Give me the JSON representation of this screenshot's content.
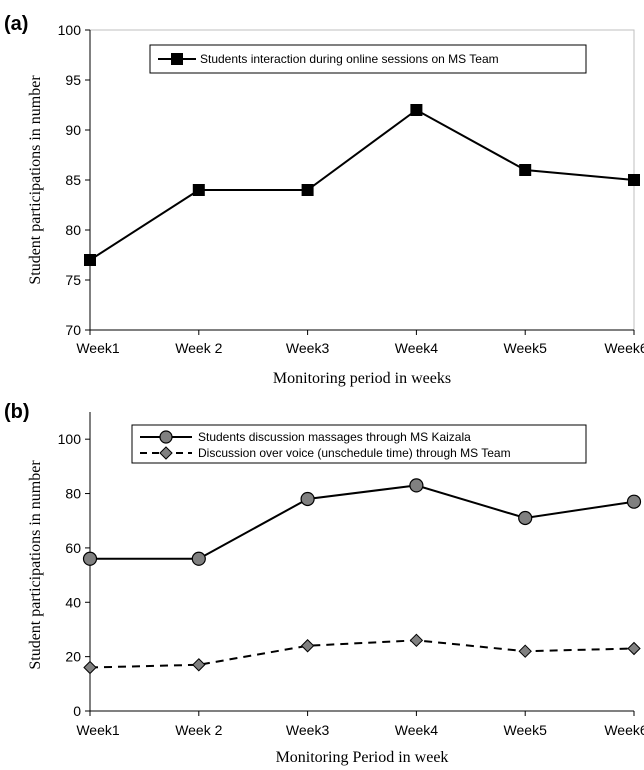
{
  "chart_data": [
    {
      "panel_label": "(a)",
      "type": "line",
      "categories": [
        "Week1",
        "Week 2",
        "Week3",
        "Week4",
        "Week5",
        "Week6"
      ],
      "series": [
        {
          "name": "Students interaction during online sessions on MS Team",
          "values": [
            77,
            84,
            84,
            92,
            86,
            85
          ],
          "color": "#000000",
          "marker": "square",
          "dash": "solid"
        }
      ],
      "xlabel": "Monitoring period in weeks",
      "ylabel": "Student participations in number",
      "ylim": [
        70,
        100
      ],
      "yticks": [
        "70",
        "75",
        "80",
        "85",
        "90",
        "95",
        "100"
      ],
      "grid": false,
      "legend_placement": "top-center"
    },
    {
      "panel_label": "(b)",
      "type": "line",
      "categories": [
        "Week1",
        "Week 2",
        "Week3",
        "Week4",
        "Week5",
        "Week6"
      ],
      "series": [
        {
          "name": "Students discussion massages through MS Kaizala",
          "values": [
            56,
            56,
            78,
            83,
            71,
            77
          ],
          "color": "#000000",
          "marker_fill": "#808080",
          "marker": "circle",
          "dash": "solid"
        },
        {
          "name": "Discussion  over voice (unschedule time) through MS Team",
          "values": [
            16,
            17,
            24,
            26,
            22,
            23
          ],
          "color": "#000000",
          "marker_fill": "#808080",
          "marker": "diamond",
          "dash": "dashed"
        }
      ],
      "xlabel": "Monitoring Period in week",
      "ylabel": "Student participations in number",
      "ylim": [
        0,
        110
      ],
      "yticks": [
        "0",
        "20",
        "40",
        "60",
        "80",
        "100"
      ],
      "grid": false,
      "legend_placement": "top-center"
    }
  ]
}
